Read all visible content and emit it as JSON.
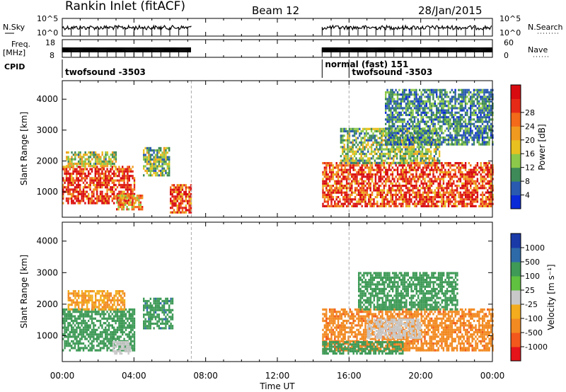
{
  "header": {
    "title": "Rankin Inlet (fitACF)",
    "beam": "Beam 12",
    "date": "28/Jan/2015"
  },
  "top_panels": {
    "nsky_label": "N.Sky",
    "nsearch_label": "N.Search",
    "noise_ticks_left": [
      "10^5",
      "10^0"
    ],
    "noise_ticks_right": [
      "10^5",
      "10^0"
    ],
    "freq_label": "Freq.",
    "freq_unit": "[MHz]",
    "freq_ticks": [
      "18",
      "8"
    ],
    "nave_label": "Nave",
    "nave_ticks": [
      "60",
      "0"
    ],
    "cpid_label": "CPID",
    "cpid_entries": [
      {
        "text": "twofsound -3503",
        "t": 0.0,
        "row": 1
      },
      {
        "text": "normal (fast) 151",
        "t": 14.5,
        "row": 0
      },
      {
        "text": "twofsound -3503",
        "t": 16.0,
        "row": 1
      }
    ]
  },
  "time_axis": {
    "label": "Time UT",
    "ticks": [
      "00:00",
      "04:00",
      "08:00",
      "12:00",
      "16:00",
      "20:00",
      "00:00"
    ],
    "range_hours": [
      0,
      24
    ]
  },
  "colors": {
    "power_scale": [
      "#0a2ad8",
      "#2a5ab0",
      "#3e8a58",
      "#8cc84a",
      "#e8c020",
      "#f09a20",
      "#f26a1a",
      "#e62a18",
      "#d80c10"
    ],
    "velocity_scale": [
      "#e4141a",
      "#f2581c",
      "#f28a22",
      "#f2ac1e",
      "#c8c8c8",
      "#60c040",
      "#3e9a56",
      "#2e6aa8",
      "#1a3aa8"
    ]
  },
  "chart_data": [
    {
      "type": "heatmap",
      "name": "power",
      "ylabel": "Slant Range [km]",
      "yticks": [
        1000,
        2000,
        3000,
        4000
      ],
      "ylim": [
        180,
        4600
      ],
      "xlim": [
        0,
        24
      ],
      "colorbar_label": "Power [dB]",
      "colorbar_ticks": [
        "4",
        "8",
        "12",
        "16",
        "20",
        "24",
        "28"
      ],
      "colorbar_range": [
        0,
        32
      ],
      "data_blocks": [
        {
          "t": [
            0.0,
            4.0
          ],
          "r": [
            600,
            1800
          ],
          "v": 28
        },
        {
          "t": [
            0.2,
            3.0
          ],
          "r": [
            1800,
            2300
          ],
          "v": 14
        },
        {
          "t": [
            3.0,
            4.5
          ],
          "r": [
            400,
            900
          ],
          "v": 20
        },
        {
          "t": [
            4.5,
            6.0
          ],
          "r": [
            1500,
            2400
          ],
          "v": 12
        },
        {
          "t": [
            6.0,
            7.2
          ],
          "r": [
            300,
            1200
          ],
          "v": 26
        },
        {
          "t": [
            14.5,
            24.0
          ],
          "r": [
            500,
            1900
          ],
          "v": 27
        },
        {
          "t": [
            15.5,
            21.0
          ],
          "r": [
            1900,
            3000
          ],
          "v": 12
        },
        {
          "t": [
            18.0,
            24.0
          ],
          "r": [
            2500,
            4300
          ],
          "v": 8
        }
      ]
    },
    {
      "type": "heatmap",
      "name": "velocity",
      "ylabel": "Slant Range [km]",
      "yticks": [
        1000,
        2000,
        3000,
        4000
      ],
      "ylim": [
        180,
        4600
      ],
      "xlim": [
        0,
        24
      ],
      "colorbar_label": "Velocity [m s⁻¹]",
      "colorbar_ticks": [
        "-1000",
        "-500",
        "-100",
        "-25",
        "25",
        "100",
        "500",
        "1000"
      ],
      "data_blocks": [
        {
          "t": [
            0.0,
            4.0
          ],
          "r": [
            500,
            1800
          ],
          "v": 300
        },
        {
          "t": [
            0.3,
            3.5
          ],
          "r": [
            1800,
            2400
          ],
          "v": -100
        },
        {
          "t": [
            2.8,
            3.8
          ],
          "r": [
            400,
            800
          ],
          "v": 0
        },
        {
          "t": [
            4.5,
            6.2
          ],
          "r": [
            1200,
            2200
          ],
          "v": 400
        },
        {
          "t": [
            14.5,
            24.0
          ],
          "r": [
            500,
            1800
          ],
          "v": -400
        },
        {
          "t": [
            17.0,
            20.0
          ],
          "r": [
            900,
            1500
          ],
          "v": 0
        },
        {
          "t": [
            14.5,
            19.0
          ],
          "r": [
            400,
            800
          ],
          "v": 200
        },
        {
          "t": [
            16.5,
            22.0
          ],
          "r": [
            1800,
            3000
          ],
          "v": 150
        }
      ]
    }
  ]
}
